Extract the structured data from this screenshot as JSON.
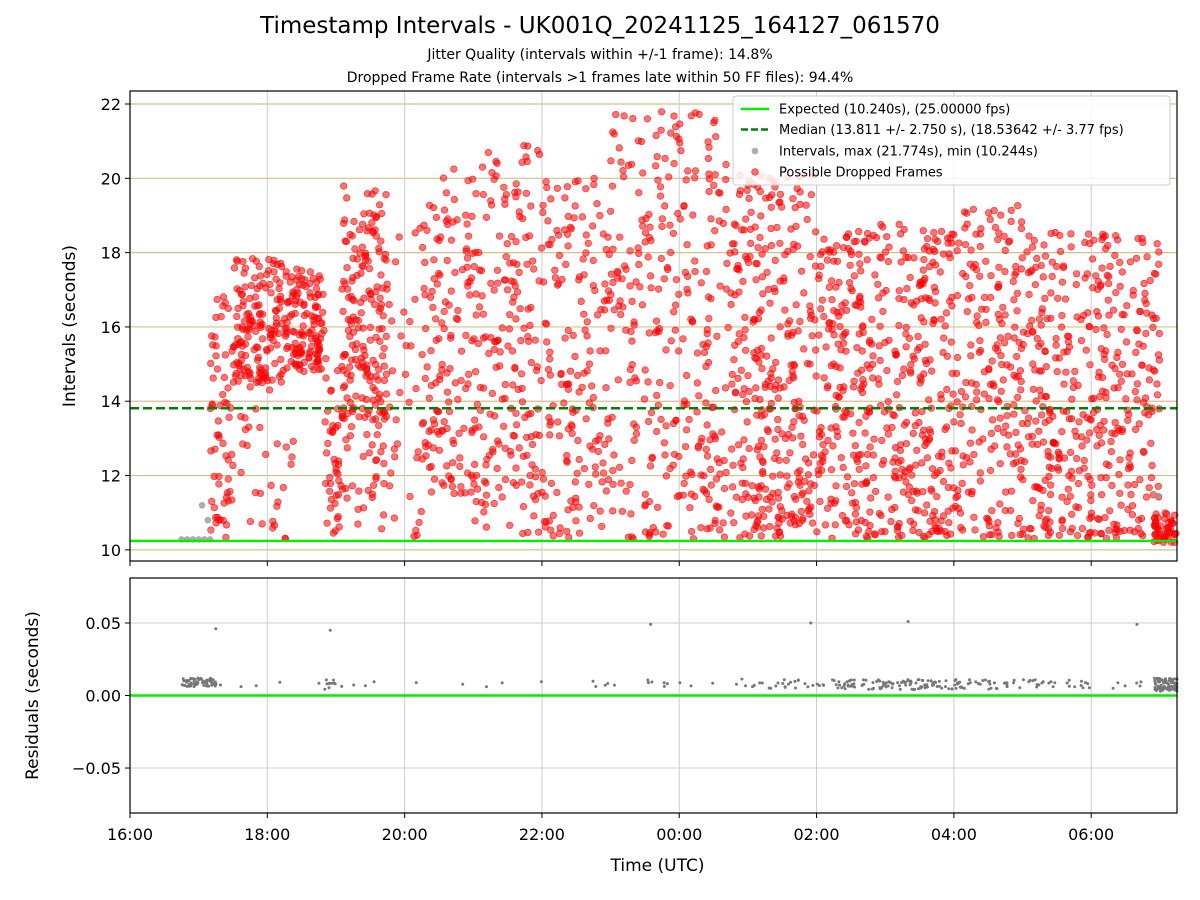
{
  "title": "Timestamp Intervals - UK001Q_20241125_164127_061570",
  "subtitles": [
    "Jitter Quality (intervals within +/-1 frame): 14.8%",
    "Dropped Frame Rate (intervals >1 frames late within 50 FF files): 94.4%"
  ],
  "colors": {
    "expected": "#00ee00",
    "median": "#008000",
    "intervals": "#999999",
    "dropped": "#ff0000",
    "residuals": "#777777",
    "top_grid": "#d4c08a",
    "bottom_grid": "#cccccc"
  },
  "chart_data": [
    {
      "type": "scatter",
      "panel": "top",
      "xlabel": "",
      "ylabel": "Intervals (seconds)",
      "xlim": [
        "16:00",
        "07:15"
      ],
      "ylim": [
        9.7,
        22.35
      ],
      "x_ticks": [
        "16:00",
        "18:00",
        "20:00",
        "22:00",
        "00:00",
        "02:00",
        "04:00",
        "06:00"
      ],
      "y_ticks": [
        10,
        12,
        14,
        16,
        18,
        20,
        22
      ],
      "grid": true,
      "legend_position": "top-right",
      "lines": [
        {
          "name": "Expected (10.240s), (25.00000 fps)",
          "y": 10.24,
          "style": "solid",
          "color": "#00ee00"
        },
        {
          "name": "Median (13.811 +/- 2.750 s), (18.53642 +/- 3.77 fps)",
          "y": 13.811,
          "style": "dashed",
          "color": "#008000"
        }
      ],
      "series": [
        {
          "name": "Intervals, max (21.774s), min (10.244s)",
          "color": "#999999",
          "points": [
            [
              "16:45",
              10.28
            ],
            [
              "16:50",
              10.28
            ],
            [
              "16:55",
              10.28
            ],
            [
              "17:00",
              10.28
            ],
            [
              "17:05",
              10.28
            ],
            [
              "17:10",
              10.28
            ],
            [
              "17:03",
              11.2
            ],
            [
              "17:08",
              10.8
            ],
            [
              "06:58",
              11.45
            ]
          ]
        },
        {
          "name": "Possible Dropped Frames",
          "color": "#ff0000",
          "density_bins": [
            {
              "from": "17:10",
              "to": "17:30",
              "count": 60,
              "ymin": 10.3,
              "ymax": 17.9
            },
            {
              "from": "17:30",
              "to": "18:15",
              "count": 150,
              "ymin": 14.5,
              "ymax": 17.9
            },
            {
              "from": "17:35",
              "to": "18:30",
              "count": 30,
              "ymin": 10.3,
              "ymax": 14.5
            },
            {
              "from": "18:15",
              "to": "18:50",
              "count": 130,
              "ymin": 14.8,
              "ymax": 17.6
            },
            {
              "from": "18:50",
              "to": "19:05",
              "count": 40,
              "ymin": 10.3,
              "ymax": 15.5
            },
            {
              "from": "19:05",
              "to": "19:45",
              "count": 150,
              "ymin": 13.5,
              "ymax": 19.8
            },
            {
              "from": "19:05",
              "to": "20:15",
              "count": 90,
              "ymin": 10.3,
              "ymax": 19.0
            },
            {
              "from": "20:15",
              "to": "21:00",
              "count": 140,
              "ymin": 11.5,
              "ymax": 20.3
            },
            {
              "from": "21:00",
              "to": "22:00",
              "count": 190,
              "ymin": 10.4,
              "ymax": 21.0
            },
            {
              "from": "22:00",
              "to": "23:00",
              "count": 170,
              "ymin": 10.3,
              "ymax": 20.0
            },
            {
              "from": "23:00",
              "to": "00:45",
              "count": 300,
              "ymin": 10.3,
              "ymax": 21.8
            },
            {
              "from": "00:45",
              "to": "02:00",
              "count": 320,
              "ymin": 10.3,
              "ymax": 20.1
            },
            {
              "from": "02:00",
              "to": "04:00",
              "count": 460,
              "ymin": 10.3,
              "ymax": 18.8
            },
            {
              "from": "04:00",
              "to": "05:00",
              "count": 200,
              "ymin": 10.3,
              "ymax": 19.3
            },
            {
              "from": "05:00",
              "to": "06:00",
              "count": 210,
              "ymin": 10.3,
              "ymax": 18.6
            },
            {
              "from": "06:00",
              "to": "07:00",
              "count": 200,
              "ymin": 10.3,
              "ymax": 18.5
            },
            {
              "from": "06:55",
              "to": "07:15",
              "count": 50,
              "ymin": 10.2,
              "ymax": 11.0
            }
          ]
        }
      ],
      "legend": [
        "Expected (10.240s), (25.00000 fps)",
        "Median (13.811 +/- 2.750 s), (18.53642 +/- 3.77 fps)",
        "Intervals, max (21.774s), min (10.244s)",
        "Possible Dropped Frames"
      ]
    },
    {
      "type": "scatter",
      "panel": "bottom",
      "xlabel": "Time (UTC)",
      "ylabel": "Residuals (seconds)",
      "xlim": [
        "16:00",
        "07:15"
      ],
      "ylim": [
        -0.081,
        0.081
      ],
      "x_ticks": [
        "16:00",
        "18:00",
        "20:00",
        "22:00",
        "00:00",
        "02:00",
        "04:00",
        "06:00"
      ],
      "y_ticks": [
        0.05,
        0.0,
        -0.05
      ],
      "y_tick_labels": [
        "0.05",
        "0.00",
        "−0.05"
      ],
      "grid": true,
      "lines": [
        {
          "y": 0,
          "style": "solid",
          "color": "#00ee00"
        }
      ],
      "series": [
        {
          "name": "Residuals",
          "color": "#777777",
          "outliers": [
            [
              "17:15",
              0.046
            ],
            [
              "18:55",
              0.045
            ],
            [
              "23:35",
              0.049
            ],
            [
              "01:55",
              0.05
            ],
            [
              "03:20",
              0.051
            ],
            [
              "06:40",
              0.049
            ]
          ],
          "cluster_bins": [
            {
              "from": "16:45",
              "to": "17:15",
              "count": 60,
              "ymin": 0.006,
              "ymax": 0.012
            },
            {
              "from": "17:15",
              "to": "18:50",
              "count": 6,
              "ymin": 0.006,
              "ymax": 0.01
            },
            {
              "from": "18:50",
              "to": "19:00",
              "count": 10,
              "ymin": 0.004,
              "ymax": 0.012
            },
            {
              "from": "19:00",
              "to": "23:20",
              "count": 14,
              "ymin": 0.006,
              "ymax": 0.01
            },
            {
              "from": "23:20",
              "to": "01:00",
              "count": 12,
              "ymin": 0.006,
              "ymax": 0.012
            },
            {
              "from": "01:00",
              "to": "02:20",
              "count": 30,
              "ymin": 0.005,
              "ymax": 0.011
            },
            {
              "from": "02:20",
              "to": "04:15",
              "count": 110,
              "ymin": 0.004,
              "ymax": 0.011
            },
            {
              "from": "04:15",
              "to": "06:00",
              "count": 45,
              "ymin": 0.004,
              "ymax": 0.011
            },
            {
              "from": "06:00",
              "to": "06:55",
              "count": 6,
              "ymin": 0.005,
              "ymax": 0.01
            },
            {
              "from": "06:55",
              "to": "07:15",
              "count": 80,
              "ymin": 0.003,
              "ymax": 0.012
            }
          ]
        }
      ]
    }
  ]
}
